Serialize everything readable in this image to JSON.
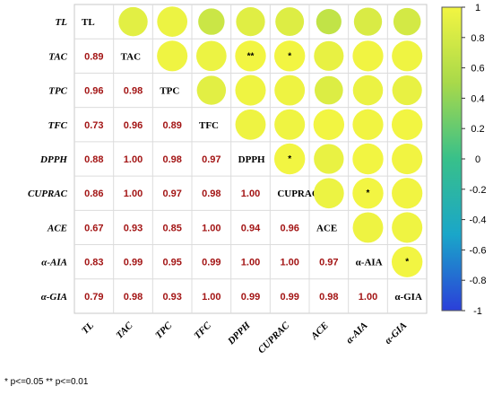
{
  "chart_data": {
    "type": "heatmap",
    "variables": [
      "TL",
      "TAC",
      "TPC",
      "TFC",
      "DPPH",
      "CUPRAC",
      "ACE",
      "α-AIA",
      "α-GIA"
    ],
    "matrix": [
      [
        1.0,
        0.89,
        0.96,
        0.73,
        0.88,
        0.86,
        0.67,
        0.83,
        0.79
      ],
      [
        0.89,
        1.0,
        0.98,
        0.96,
        1.0,
        1.0,
        0.93,
        0.99,
        0.98
      ],
      [
        0.96,
        0.98,
        1.0,
        0.89,
        0.98,
        0.97,
        0.85,
        0.95,
        0.93
      ],
      [
        0.73,
        0.96,
        0.89,
        1.0,
        0.97,
        0.98,
        1.0,
        0.99,
        1.0
      ],
      [
        0.88,
        1.0,
        0.98,
        0.97,
        1.0,
        1.0,
        0.94,
        1.0,
        0.99
      ],
      [
        0.86,
        1.0,
        0.97,
        0.98,
        1.0,
        1.0,
        0.96,
        1.0,
        0.99
      ],
      [
        0.67,
        0.93,
        0.85,
        1.0,
        0.94,
        0.96,
        1.0,
        0.97,
        0.98
      ],
      [
        0.83,
        0.99,
        0.95,
        0.99,
        1.0,
        1.0,
        0.97,
        1.0,
        1.0
      ],
      [
        0.79,
        0.98,
        0.93,
        1.0,
        0.99,
        0.99,
        0.98,
        1.0,
        1.0
      ]
    ],
    "lower_triangle_labels": [
      [
        "0.89"
      ],
      [
        "0.96",
        "0.98"
      ],
      [
        "0.73",
        "0.96",
        "0.89"
      ],
      [
        "0.88",
        "1.00",
        "0.98",
        "0.97"
      ],
      [
        "0.86",
        "1.00",
        "0.97",
        "0.98",
        "1.00"
      ],
      [
        "0.67",
        "0.93",
        "0.85",
        "1.00",
        "0.94",
        "0.96"
      ],
      [
        "0.83",
        "0.99",
        "0.95",
        "0.99",
        "1.00",
        "1.00",
        "0.97"
      ],
      [
        "0.79",
        "0.98",
        "0.93",
        "1.00",
        "0.99",
        "0.99",
        "0.98",
        "1.00"
      ]
    ],
    "significance": [
      {
        "row": "TAC",
        "col": "DPPH",
        "mark": "**"
      },
      {
        "row": "TAC",
        "col": "CUPRAC",
        "mark": "*"
      },
      {
        "row": "DPPH",
        "col": "CUPRAC",
        "mark": "*"
      },
      {
        "row": "CUPRAC",
        "col": "α-AIA",
        "mark": "*"
      },
      {
        "row": "α-AIA",
        "col": "α-GIA",
        "mark": "*"
      }
    ],
    "colorbar": {
      "range": [
        -1,
        1
      ],
      "ticks": [
        "1",
        "0.8",
        "0.6",
        "0.4",
        "0.2",
        "0",
        "-0.2",
        "-0.4",
        "-0.6",
        "-0.8",
        "-1"
      ],
      "colors": [
        "#2b3fd9",
        "#1aa6c9",
        "#38c08a",
        "#a8d94a",
        "#f2f542"
      ]
    },
    "footnote": "* p<=0.05  ** p<=0.01"
  }
}
